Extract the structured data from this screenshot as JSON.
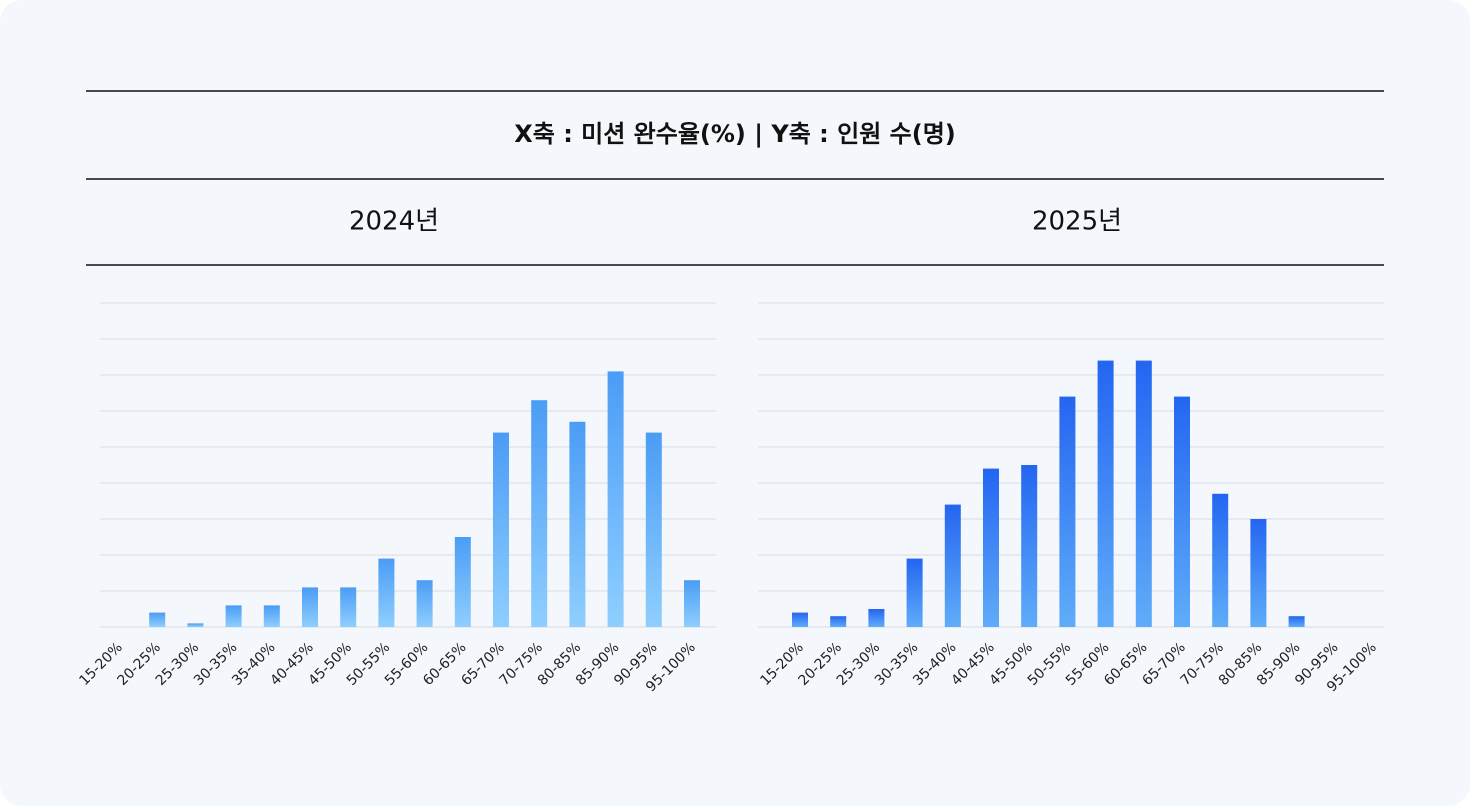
{
  "header": {
    "title": "X축 : 미션 완수율(%) | Y축 : 인원 수(명)"
  },
  "chart_data": [
    {
      "type": "bar",
      "title": "2024년",
      "categories": [
        "15-20%",
        "20-25%",
        "25-30%",
        "30-35%",
        "35-40%",
        "40-45%",
        "45-50%",
        "50-55%",
        "55-60%",
        "60-65%",
        "65-70%",
        "70-75%",
        "80-85%",
        "85-90%",
        "90-95%",
        "95-100%"
      ],
      "values": [
        0,
        0.4,
        0.1,
        0.6,
        0.6,
        1.1,
        1.1,
        1.9,
        1.3,
        2.5,
        5.4,
        6.3,
        5.7,
        7.1,
        5.4,
        1.3
      ],
      "colors": [
        "#8fcfff",
        "#4b9cf5"
      ],
      "ylim": [
        0,
        9
      ],
      "yticks": [
        0,
        1,
        2,
        3,
        4,
        5,
        6,
        7,
        8,
        9
      ],
      "grid": true
    },
    {
      "type": "bar",
      "title": "2025년",
      "categories": [
        "15-20%",
        "20-25%",
        "25-30%",
        "30-35%",
        "35-40%",
        "40-45%",
        "45-50%",
        "50-55%",
        "55-60%",
        "60-65%",
        "65-70%",
        "70-75%",
        "80-85%",
        "85-90%",
        "90-95%",
        "95-100%"
      ],
      "values": [
        0.4,
        0.3,
        0.5,
        1.9,
        3.4,
        4.4,
        4.5,
        6.4,
        7.4,
        7.4,
        6.4,
        3.7,
        3.0,
        0.3,
        0,
        0
      ],
      "colors": [
        "#5fadf9",
        "#2465f1"
      ],
      "ylim": [
        0,
        9
      ],
      "yticks": [
        0,
        1,
        2,
        3,
        4,
        5,
        6,
        7,
        8,
        9
      ],
      "grid": true
    }
  ]
}
